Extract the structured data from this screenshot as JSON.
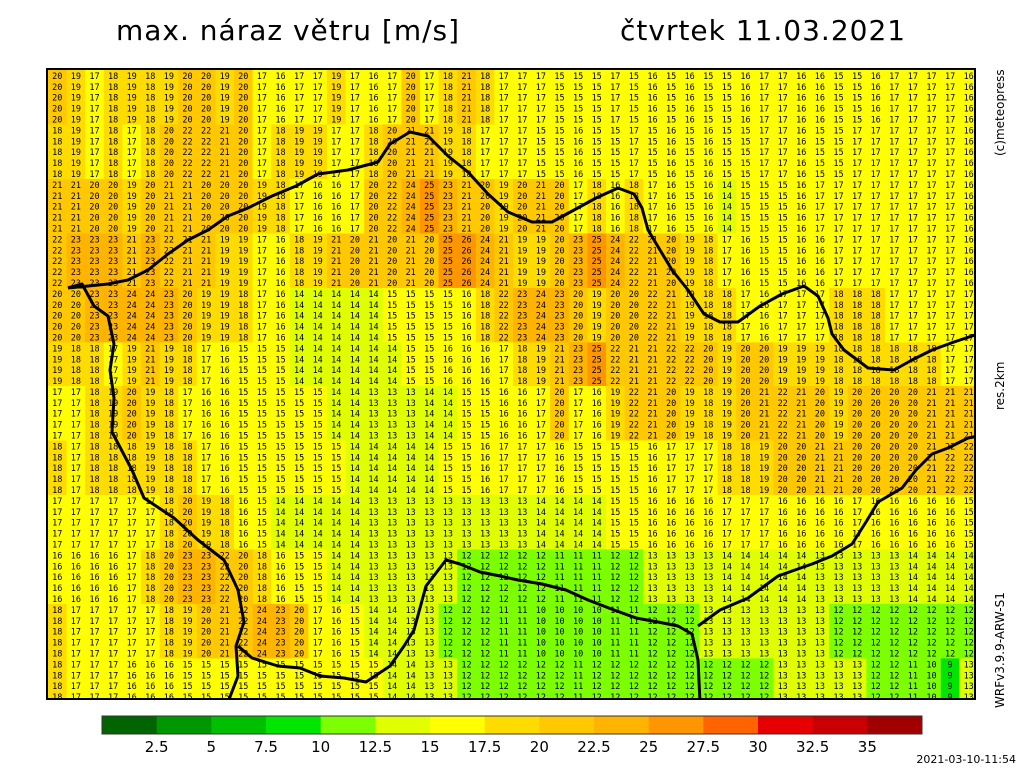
{
  "header": {
    "title_left": "max. náraz větru [m/s]",
    "title_right": "čtvrtek 11.03.2021"
  },
  "side_labels": {
    "credit": "(c)meteopress",
    "resolution": "res.2km",
    "model": "WRFv3.9.9-ARW-S1"
  },
  "timestamp": "2021-03-10-11:54",
  "colors": {
    "background": "#ffffff",
    "border": "#000000",
    "scale": [
      "#006400",
      "#009600",
      "#00be00",
      "#00e600",
      "#7cff00",
      "#e0ff00",
      "#ffff00",
      "#ffdc00",
      "#ffc800",
      "#ffb400",
      "#ff9600",
      "#ff6400",
      "#e60000",
      "#c80000",
      "#a00000",
      "#7d0000",
      "#5a0000"
    ]
  },
  "chart_data": {
    "type": "heatmap",
    "title": "max. náraz větru [m/s]",
    "date": "čtvrtek 11.03.2021",
    "unit": "m/s",
    "colorbar": {
      "tick_labels": [
        "2.5",
        "5",
        "7.5",
        "10",
        "12.5",
        "15",
        "17.5",
        "20",
        "22.5",
        "25",
        "27.5",
        "30",
        "32.5",
        "35"
      ],
      "bins": 15
    },
    "grid": {
      "columns": 50,
      "rows": 58,
      "sample_values": [
        [
          20,
          19,
          17,
          18,
          19,
          18,
          19,
          20,
          20,
          19,
          20,
          17,
          16,
          17,
          17,
          19,
          17,
          16,
          17,
          20,
          17,
          18,
          21,
          18,
          17,
          17,
          17,
          15,
          15,
          15,
          17,
          15,
          16,
          15,
          16,
          15,
          15,
          16,
          17,
          17,
          16,
          16,
          15,
          15,
          16,
          17,
          17,
          17,
          17,
          16
        ],
        [
          18,
          19,
          17,
          18,
          17,
          18,
          20,
          22,
          22,
          21,
          20,
          17,
          18,
          19,
          19,
          17,
          17,
          18,
          20,
          21,
          21,
          19,
          18,
          17,
          17,
          17,
          15,
          15,
          16,
          15,
          15,
          17,
          15,
          16,
          15,
          16,
          15,
          15,
          17,
          17,
          16,
          15,
          15,
          17,
          17,
          17,
          17,
          17,
          17,
          16
        ],
        [
          21,
          21,
          20,
          20,
          19,
          20,
          21,
          21,
          20,
          20,
          20,
          19,
          18,
          17,
          16,
          16,
          17,
          20,
          22,
          24,
          25,
          23,
          21,
          20,
          19,
          20,
          21,
          20,
          17,
          18,
          16,
          18,
          17,
          16,
          15,
          16,
          14,
          15,
          15,
          15,
          16,
          17,
          17,
          17,
          17,
          17,
          17,
          17,
          17,
          16
        ],
        [
          22,
          23,
          23,
          23,
          21,
          23,
          22,
          21,
          21,
          19,
          19,
          17,
          16,
          18,
          19,
          21,
          20,
          21,
          20,
          21,
          20,
          25,
          26,
          24,
          21,
          19,
          19,
          20,
          23,
          25,
          24,
          22,
          21,
          20,
          19,
          18,
          17,
          16,
          15,
          15,
          16,
          16,
          17,
          17,
          17,
          17,
          17,
          17,
          17,
          16
        ],
        [
          20,
          20,
          23,
          23,
          24,
          24,
          23,
          20,
          19,
          19,
          18,
          17,
          16,
          14,
          14,
          14,
          14,
          14,
          15,
          15,
          15,
          15,
          16,
          18,
          22,
          23,
          24,
          23,
          20,
          19,
          20,
          20,
          22,
          21,
          19,
          18,
          18,
          17,
          16,
          17,
          17,
          17,
          18,
          18,
          18,
          17,
          17,
          17,
          17,
          17
        ],
        [
          19,
          18,
          18,
          17,
          19,
          21,
          19,
          18,
          17,
          16,
          15,
          15,
          15,
          14,
          14,
          14,
          14,
          14,
          14,
          15,
          15,
          16,
          16,
          16,
          17,
          18,
          19,
          21,
          23,
          25,
          22,
          21,
          21,
          22,
          22,
          20,
          19,
          20,
          20,
          19,
          19,
          19,
          18,
          18,
          18,
          18,
          18,
          18,
          17,
          17
        ],
        [
          17,
          17,
          18,
          19,
          20,
          19,
          18,
          17,
          16,
          16,
          15,
          15,
          15,
          15,
          15,
          14,
          14,
          13,
          13,
          13,
          14,
          14,
          15,
          15,
          16,
          16,
          17,
          20,
          17,
          16,
          19,
          22,
          21,
          20,
          19,
          18,
          19,
          20,
          21,
          22,
          21,
          20,
          19,
          20,
          20,
          20,
          20,
          21,
          21,
          21
        ],
        [
          18,
          17,
          18,
          18,
          18,
          19,
          18,
          18,
          17,
          16,
          15,
          15,
          15,
          15,
          15,
          15,
          14,
          14,
          14,
          14,
          14,
          15,
          15,
          16,
          17,
          17,
          17,
          16,
          15,
          15,
          15,
          15,
          16,
          17,
          17,
          17,
          18,
          18,
          19,
          20,
          20,
          21,
          21,
          20,
          20,
          20,
          20,
          21,
          22,
          22
        ],
        [
          17,
          17,
          17,
          17,
          17,
          17,
          18,
          20,
          19,
          18,
          16,
          15,
          14,
          14,
          14,
          14,
          14,
          13,
          13,
          13,
          13,
          13,
          13,
          13,
          13,
          13,
          14,
          14,
          14,
          14,
          15,
          15,
          16,
          16,
          16,
          16,
          17,
          17,
          17,
          16,
          16,
          16,
          16,
          17,
          16,
          16,
          16,
          16,
          16,
          15
        ],
        [
          16,
          16,
          16,
          16,
          17,
          18,
          20,
          23,
          23,
          22,
          20,
          18,
          16,
          15,
          15,
          14,
          14,
          13,
          13,
          13,
          13,
          13,
          12,
          12,
          12,
          12,
          12,
          11,
          11,
          11,
          12,
          12,
          13,
          13,
          13,
          13,
          14,
          14,
          14,
          14,
          14,
          13,
          13,
          13,
          13,
          13,
          14,
          14,
          14,
          14
        ],
        [
          18,
          17,
          17,
          17,
          17,
          17,
          18,
          19,
          20,
          21,
          22,
          24,
          23,
          20,
          17,
          16,
          15,
          14,
          14,
          13,
          13,
          12,
          12,
          12,
          11,
          11,
          10,
          10,
          10,
          10,
          11,
          11,
          12,
          12,
          12,
          13,
          13,
          13,
          13,
          13,
          13,
          13,
          12,
          12,
          12,
          12,
          12,
          12,
          12,
          12
        ],
        [
          18,
          17,
          17,
          17,
          16,
          16,
          16,
          15,
          15,
          15,
          15,
          15,
          15,
          15,
          15,
          15,
          15,
          15,
          14,
          14,
          13,
          13,
          12,
          12,
          12,
          12,
          12,
          12,
          11,
          12,
          12,
          12,
          12,
          12,
          12,
          12,
          12,
          12,
          12,
          13,
          13,
          13,
          13,
          13,
          12,
          12,
          11,
          10,
          9,
          13
        ]
      ]
    }
  }
}
